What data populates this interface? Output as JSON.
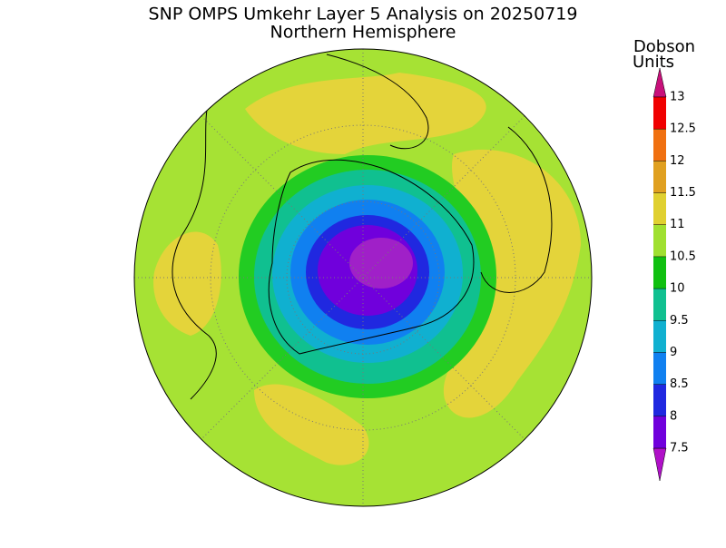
{
  "header": {
    "title": "SNP OMPS Umkehr Layer 5 Analysis on 20250719",
    "subtitle": "Northern Hemisphere"
  },
  "colorbar": {
    "label": [
      "Dobson",
      "Units"
    ],
    "ticks": [
      7.5,
      8,
      8.5,
      9,
      9.5,
      10,
      10.5,
      11,
      11.5,
      12,
      12.5,
      13
    ],
    "colors": [
      "#b010c8",
      "#7000dc",
      "#2028e0",
      "#1080f0",
      "#10b0d0",
      "#10c090",
      "#10c010",
      "#a0e030",
      "#e0d030",
      "#e0a020",
      "#f07010",
      "#f00000",
      "#c8107a"
    ]
  }
}
